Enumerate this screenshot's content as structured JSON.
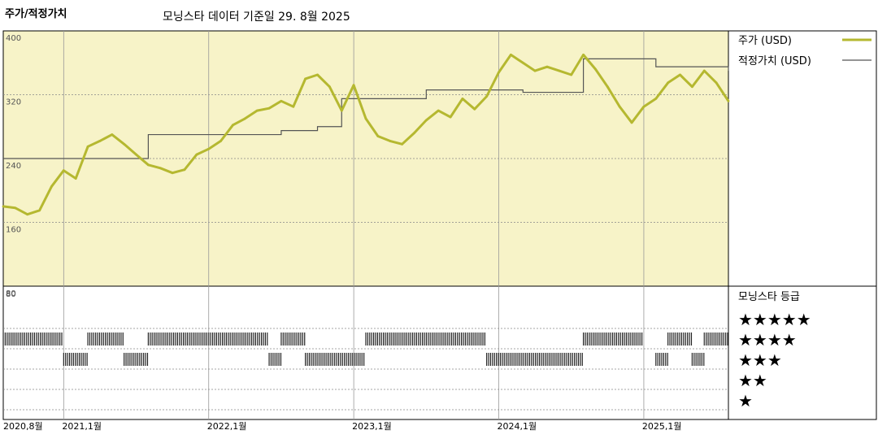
{
  "header": {
    "title": "주가/적정가치",
    "subtitle": "모닝스타 데이터 기준일 29. 8월 2025"
  },
  "colors": {
    "price_line": "#b5b830",
    "fair_value_line": "#555555",
    "upper_panel_bg": "#f7f3c8",
    "rating_bar": "#222222",
    "grid": "#888888"
  },
  "chart_data": {
    "type": "line",
    "ylim": [
      80,
      400
    ],
    "yticks": [
      "400",
      "320",
      "240",
      "160",
      "80"
    ],
    "x_tick_labels": [
      "2020,8월",
      "2021,1월",
      "2022,1월",
      "2023,1월",
      "2024,1월",
      "2025,1월"
    ],
    "x_tick_dates": [
      "2020-08",
      "2021-01",
      "2022-01",
      "2023-01",
      "2024-01",
      "2025-01"
    ],
    "x_range": [
      "2020-08",
      "2025-08"
    ],
    "legend": {
      "price_label": "주가 (USD)",
      "fair_value_label": "적정가치 (USD)",
      "rating_title": "모닝스타 등급"
    },
    "series": [
      {
        "name": "주가 (USD)",
        "x": [
          "2020-08",
          "2020-09",
          "2020-10",
          "2020-11",
          "2020-12",
          "2021-01",
          "2021-02",
          "2021-03",
          "2021-04",
          "2021-05",
          "2021-06",
          "2021-07",
          "2021-08",
          "2021-09",
          "2021-10",
          "2021-11",
          "2021-12",
          "2022-01",
          "2022-02",
          "2022-03",
          "2022-04",
          "2022-05",
          "2022-06",
          "2022-07",
          "2022-08",
          "2022-09",
          "2022-10",
          "2022-11",
          "2022-12",
          "2023-01",
          "2023-02",
          "2023-03",
          "2023-04",
          "2023-05",
          "2023-06",
          "2023-07",
          "2023-08",
          "2023-09",
          "2023-10",
          "2023-11",
          "2023-12",
          "2024-01",
          "2024-02",
          "2024-03",
          "2024-04",
          "2024-05",
          "2024-06",
          "2024-07",
          "2024-08",
          "2024-09",
          "2024-10",
          "2024-11",
          "2024-12",
          "2025-01",
          "2025-02",
          "2025-03",
          "2025-04",
          "2025-05",
          "2025-06",
          "2025-07",
          "2025-08"
        ],
        "values": [
          180,
          178,
          170,
          175,
          205,
          225,
          215,
          255,
          262,
          270,
          258,
          245,
          232,
          228,
          222,
          226,
          245,
          252,
          262,
          282,
          290,
          300,
          303,
          312,
          305,
          340,
          345,
          330,
          300,
          332,
          290,
          268,
          262,
          258,
          272,
          288,
          300,
          292,
          315,
          302,
          318,
          348,
          370,
          360,
          350,
          355,
          350,
          345,
          370,
          352,
          330,
          305,
          285,
          305,
          315,
          335,
          345,
          330,
          350,
          335,
          312
        ]
      },
      {
        "name": "적정가치 (USD)",
        "x": [
          "2020-08",
          "2021-01",
          "2021-08",
          "2022-01",
          "2022-07",
          "2022-10",
          "2022-12",
          "2023-07",
          "2023-12",
          "2024-03",
          "2024-08",
          "2024-11",
          "2025-02",
          "2025-08"
        ],
        "values": [
          240,
          240,
          270,
          270,
          275,
          280,
          315,
          326,
          326,
          323,
          365,
          365,
          355,
          350
        ]
      }
    ],
    "ratings": {
      "levels": [
        "★★★★★",
        "★★★★",
        "★★★",
        "★★",
        "★"
      ],
      "segments": [
        {
          "stars": 4,
          "start": "2020-08",
          "end": "2021-01"
        },
        {
          "stars": 3,
          "start": "2021-01",
          "end": "2021-03"
        },
        {
          "stars": 4,
          "start": "2021-03",
          "end": "2021-06"
        },
        {
          "stars": 3,
          "start": "2021-06",
          "end": "2021-08"
        },
        {
          "stars": 4,
          "start": "2021-08",
          "end": "2022-06"
        },
        {
          "stars": 3,
          "start": "2022-06",
          "end": "2022-07"
        },
        {
          "stars": 4,
          "start": "2022-07",
          "end": "2022-09"
        },
        {
          "stars": 3,
          "start": "2022-09",
          "end": "2023-02"
        },
        {
          "stars": 4,
          "start": "2023-02",
          "end": "2023-12"
        },
        {
          "stars": 3,
          "start": "2023-12",
          "end": "2024-08"
        },
        {
          "stars": 4,
          "start": "2024-08",
          "end": "2025-01"
        },
        {
          "stars": 3,
          "start": "2025-02",
          "end": "2025-03"
        },
        {
          "stars": 4,
          "start": "2025-03",
          "end": "2025-05"
        },
        {
          "stars": 3,
          "start": "2025-05",
          "end": "2025-06"
        },
        {
          "stars": 4,
          "start": "2025-06",
          "end": "2025-08"
        }
      ]
    },
    "grid": true
  }
}
